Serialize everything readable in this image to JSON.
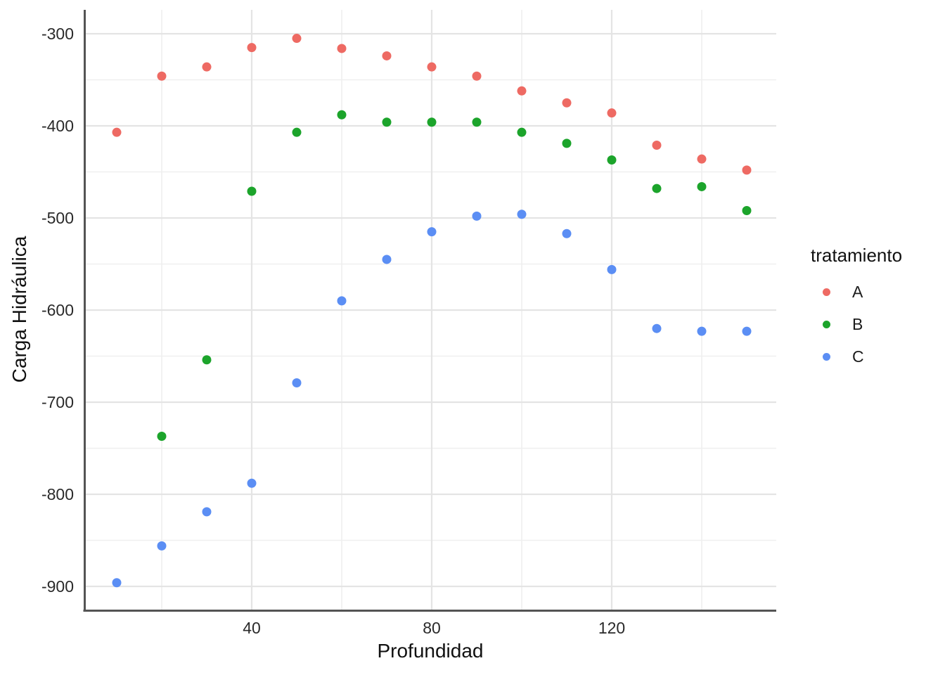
{
  "figure": {
    "background": "#FFFFFF",
    "text_color": "#2A2A2A",
    "axis_line_color": "#545454",
    "grid_major_color": "#E4E4E4",
    "grid_minor_color": "#EFEFEF"
  },
  "chart_data": {
    "type": "scatter",
    "title": "",
    "xlabel": "Profundidad",
    "ylabel": "Carga Hidráulica",
    "grid": true,
    "xlim": [
      3,
      157
    ],
    "ylim": [
      -926,
      -274
    ],
    "x_major_ticks": [
      40,
      80,
      120
    ],
    "x_minor_gridlines": [
      20,
      60,
      100,
      140
    ],
    "y_major_ticks": [
      -300,
      -400,
      -500,
      -600,
      -700,
      -800,
      -900
    ],
    "y_minor_gridlines": [
      -350,
      -450,
      -550,
      -650,
      -750,
      -850
    ],
    "legend": {
      "title": "tratamiento",
      "position": "right"
    },
    "series": [
      {
        "name": "A",
        "color": "#EE6A63",
        "points": [
          [
            10,
            -407
          ],
          [
            20,
            -346
          ],
          [
            30,
            -336
          ],
          [
            40,
            -315
          ],
          [
            50,
            -305
          ],
          [
            60,
            -316
          ],
          [
            70,
            -324
          ],
          [
            80,
            -336
          ],
          [
            90,
            -346
          ],
          [
            100,
            -362
          ],
          [
            110,
            -375
          ],
          [
            120,
            -386
          ],
          [
            130,
            -421
          ],
          [
            140,
            -436
          ],
          [
            150,
            -448
          ]
        ]
      },
      {
        "name": "B",
        "color": "#1CA42B",
        "points": [
          [
            20,
            -737
          ],
          [
            30,
            -654
          ],
          [
            40,
            -471
          ],
          [
            50,
            -407
          ],
          [
            60,
            -388
          ],
          [
            70,
            -396
          ],
          [
            80,
            -396
          ],
          [
            90,
            -396
          ],
          [
            100,
            -407
          ],
          [
            110,
            -419
          ],
          [
            120,
            -437
          ],
          [
            130,
            -468
          ],
          [
            140,
            -466
          ],
          [
            150,
            -492
          ]
        ]
      },
      {
        "name": "C",
        "color": "#5B8EF4",
        "points": [
          [
            10,
            -896
          ],
          [
            20,
            -856
          ],
          [
            30,
            -819
          ],
          [
            40,
            -788
          ],
          [
            50,
            -679
          ],
          [
            60,
            -590
          ],
          [
            70,
            -545
          ],
          [
            80,
            -515
          ],
          [
            90,
            -498
          ],
          [
            100,
            -496
          ],
          [
            110,
            -517
          ],
          [
            120,
            -556
          ],
          [
            130,
            -620
          ],
          [
            140,
            -623
          ],
          [
            150,
            -623
          ]
        ]
      }
    ]
  }
}
